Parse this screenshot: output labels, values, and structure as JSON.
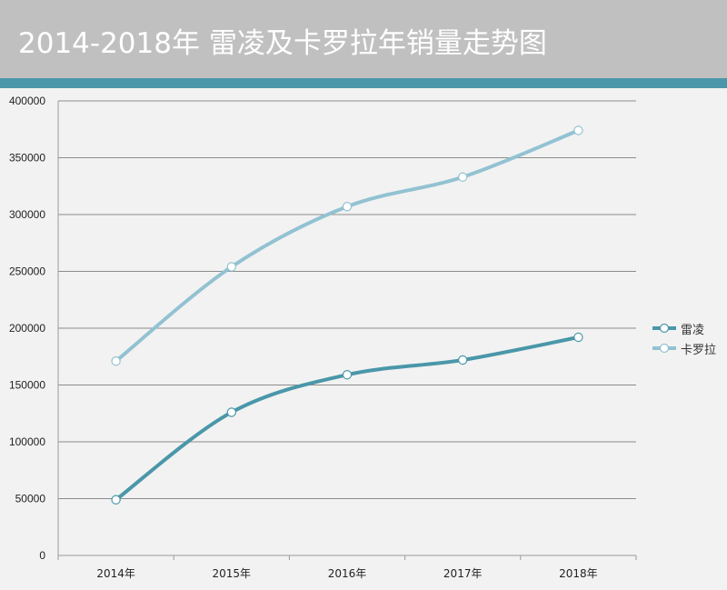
{
  "header": {
    "title": "2014-2018年 雷凌及卡罗拉年销量走势图"
  },
  "colors": {
    "header_bg": "#c0c0c0",
    "accent": "#4a97a9",
    "series_1": "#4a97a9",
    "series_2": "#92c2d2"
  },
  "chart_data": {
    "type": "line",
    "title": "2014-2018年 雷凌及卡罗拉年销量走势图",
    "categories": [
      "2014年",
      "2015年",
      "2016年",
      "2017年",
      "2018年"
    ],
    "ylim": [
      0,
      400000
    ],
    "yticks": [
      "0",
      "50000",
      "100000",
      "150000",
      "200000",
      "250000",
      "300000",
      "350000",
      "400000"
    ],
    "grid": true,
    "smooth": true,
    "legend_position": "right",
    "series": [
      {
        "name": "雷凌",
        "values": [
          49000,
          126000,
          159000,
          172000,
          192000
        ]
      },
      {
        "name": "卡罗拉",
        "values": [
          171000,
          254000,
          307000,
          333000,
          374000
        ]
      }
    ]
  }
}
